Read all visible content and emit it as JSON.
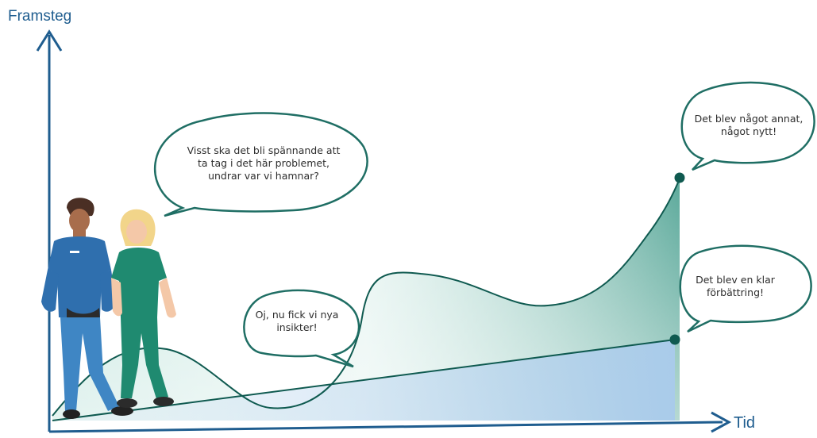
{
  "axes": {
    "y_label": "Framsteg",
    "x_label": "Tid"
  },
  "bubbles": [
    {
      "text": "Visst ska det bli spännande att ta tag i det här problemet, undrar var vi hamnar?"
    },
    {
      "text": "Oj, nu fick vi nya insikter!"
    },
    {
      "text": "Det blev något annat, något nytt!"
    },
    {
      "text": "Det blev en klar förbättring!"
    }
  ],
  "colors": {
    "axis": "#1f5d8f",
    "curve": "#0f5a50",
    "teal_fill": "#4fa898",
    "blue_fill": "#9dc3e6",
    "marker": "#0f5a50",
    "bubble_border": "#1f6e64"
  },
  "illustration": {
    "figures": [
      "person-in-blue-scrubs",
      "person-in-green-scrubs"
    ]
  }
}
